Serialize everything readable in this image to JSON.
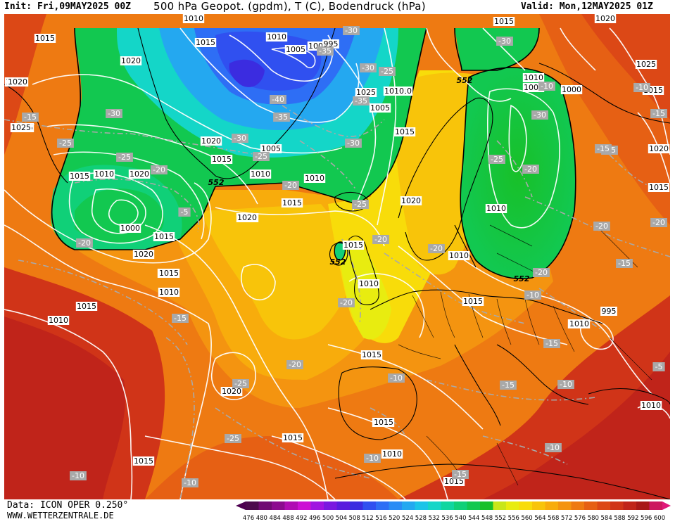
{
  "header": {
    "init": "Init: Fri,09MAY2025 00Z",
    "title": "500 hPa Geopot. (gpdm), T (C), Bodendruck (hPa)",
    "valid": "Valid: Mon,12MAY2025 01Z"
  },
  "footer": {
    "data_source": "Data: ICON OPER 0.250°",
    "website": "WWW.WETTERZENTRALE.DE"
  },
  "colorbar": {
    "ticks": [
      "476",
      "480",
      "484",
      "488",
      "492",
      "496",
      "500",
      "504",
      "508",
      "512",
      "516",
      "520",
      "524",
      "528",
      "532",
      "536",
      "540",
      "544",
      "548",
      "552",
      "556",
      "560",
      "564",
      "568",
      "572",
      "576",
      "580",
      "584",
      "588",
      "592",
      "596",
      "600"
    ],
    "colors": [
      "#4d0a4d",
      "#700a73",
      "#8c0a8f",
      "#b00cb3",
      "#cc10d4",
      "#a014e0",
      "#7a18e0",
      "#5a1cde",
      "#3b2ce0",
      "#3050f0",
      "#2e6ef5",
      "#2a8cf5",
      "#24a8f0",
      "#1cc4e8",
      "#14d6c8",
      "#10d6a0",
      "#10d078",
      "#12c850",
      "#18c028",
      "#c8e61a",
      "#e8ec10",
      "#f8dc0a",
      "#f8c40a",
      "#f8ac0c",
      "#f49410",
      "#ee7a12",
      "#e66014",
      "#dc4816",
      "#d03418",
      "#c0241a",
      "#a81818",
      "#cc1860"
    ],
    "min_arrow": "#4d0050",
    "max_arrow": "#e0187a"
  },
  "map": {
    "isobar_labels": [
      {
        "text": "1010"
      },
      {
        "text": "1015"
      },
      {
        "text": "1020"
      },
      {
        "text": "1025"
      },
      {
        "text": "1020"
      },
      {
        "text": "1015"
      },
      {
        "text": "1010"
      },
      {
        "text": "1005"
      },
      {
        "text": "1000"
      },
      {
        "text": "995"
      },
      {
        "text": "1005"
      },
      {
        "text": "1010"
      },
      {
        "text": "1015"
      },
      {
        "text": "1020"
      },
      {
        "text": "1025"
      },
      {
        "text": "1020"
      },
      {
        "text": "1015"
      },
      {
        "text": "1010"
      },
      {
        "text": "1005"
      },
      {
        "text": "1000"
      },
      {
        "text": "995"
      },
      {
        "text": "1010"
      },
      {
        "text": "1015"
      },
      {
        "text": "1020"
      },
      {
        "text": "1025"
      },
      {
        "text": "1015"
      },
      {
        "text": "1010"
      },
      {
        "text": "1005"
      },
      {
        "text": "1000"
      },
      {
        "text": "1010"
      },
      {
        "text": "1015"
      },
      {
        "text": "1020"
      },
      {
        "text": "1015"
      },
      {
        "text": "1010"
      },
      {
        "text": "1015"
      },
      {
        "text": "1020"
      },
      {
        "text": "1015"
      },
      {
        "text": "1015"
      },
      {
        "text": "1020"
      },
      {
        "text": "1015"
      },
      {
        "text": "1010"
      },
      {
        "text": "1015"
      },
      {
        "text": "1010"
      },
      {
        "text": "1020"
      },
      {
        "text": "1010"
      },
      {
        "text": "1005"
      },
      {
        "text": "1000"
      },
      {
        "text": "995"
      },
      {
        "text": "1010"
      },
      {
        "text": "1015"
      },
      {
        "text": "1015"
      },
      {
        "text": "1010"
      },
      {
        "text": "1015"
      },
      {
        "text": "1015"
      },
      {
        "text": "1020"
      },
      {
        "text": "1015"
      },
      {
        "text": "1020"
      },
      {
        "text": "1025"
      },
      {
        "text": "1010"
      },
      {
        "text": "1010"
      },
      {
        "text": "1015"
      },
      {
        "text": "1010"
      },
      {
        "text": "1020"
      },
      {
        "text": "1020"
      },
      {
        "text": "1015"
      },
      {
        "text": "1010"
      },
      {
        "text": "1015"
      },
      {
        "text": "1010"
      }
    ],
    "temp_labels": [
      {
        "text": "-15"
      },
      {
        "text": "-25"
      },
      {
        "text": "-30"
      },
      {
        "text": "-25"
      },
      {
        "text": "-20"
      },
      {
        "text": "-5"
      },
      {
        "text": "-20"
      },
      {
        "text": "-30"
      },
      {
        "text": "-35"
      },
      {
        "text": "-40"
      },
      {
        "text": "-35"
      },
      {
        "text": "-30"
      },
      {
        "text": "-25"
      },
      {
        "text": "-30"
      },
      {
        "text": "-35"
      },
      {
        "text": "-30"
      },
      {
        "text": "-25"
      },
      {
        "text": "-20"
      },
      {
        "text": "-25"
      },
      {
        "text": "-20"
      },
      {
        "text": "-20"
      },
      {
        "text": "-20"
      },
      {
        "text": "-20"
      },
      {
        "text": "-25"
      },
      {
        "text": "-30"
      },
      {
        "text": "-30"
      },
      {
        "text": "-20"
      },
      {
        "text": "-25"
      },
      {
        "text": "-20"
      },
      {
        "text": "-15"
      },
      {
        "text": "-20"
      },
      {
        "text": "-15"
      },
      {
        "text": "-15"
      },
      {
        "text": "-5"
      },
      {
        "text": "-10"
      },
      {
        "text": "-15"
      },
      {
        "text": "-10"
      },
      {
        "text": "-10"
      },
      {
        "text": "-10"
      },
      {
        "text": "-15"
      },
      {
        "text": "-15"
      },
      {
        "text": "-25"
      },
      {
        "text": "-10"
      },
      {
        "text": "-10"
      },
      {
        "text": "-10"
      },
      {
        "text": "-10"
      },
      {
        "text": "-10"
      },
      {
        "text": "-15"
      },
      {
        "text": "-20"
      },
      {
        "text": "-15"
      }
    ],
    "contour_552_labels": [
      {
        "text": "552"
      },
      {
        "text": "552"
      },
      {
        "text": "552"
      },
      {
        "text": "552"
      }
    ]
  }
}
